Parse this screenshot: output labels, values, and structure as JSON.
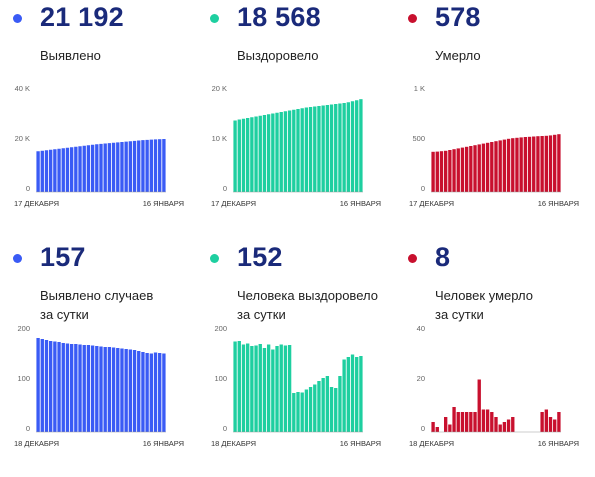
{
  "panels": [
    {
      "number": "21 192",
      "label_lines": [
        "Выявлено"
      ],
      "color": "#3a5bf5",
      "chart_data": {
        "type": "bar",
        "xlabels": [
          "17 ДЕКАБРЯ",
          "16 ЯНВАРЯ"
        ],
        "yticks": [
          {
            "v": 0,
            "t": "0"
          },
          {
            "v": 20000,
            "t": "20 K"
          },
          {
            "v": 40000,
            "t": "40 K"
          }
        ],
        "ylim": [
          0,
          40000
        ],
        "values": [
          16300,
          16500,
          16700,
          16900,
          17100,
          17300,
          17500,
          17700,
          17900,
          18100,
          18300,
          18500,
          18700,
          18900,
          19100,
          19250,
          19400,
          19550,
          19700,
          19850,
          20000,
          20150,
          20300,
          20450,
          20600,
          20750,
          20850,
          20950,
          21050,
          21120,
          21192
        ]
      }
    },
    {
      "number": "18 568",
      "label_lines": [
        "Выздоровело"
      ],
      "color": "#1ecfa0",
      "chart_data": {
        "type": "bar",
        "xlabels": [
          "17 ДЕКАБРЯ",
          "16 ЯНВАРЯ"
        ],
        "yticks": [
          {
            "v": 0,
            "t": "0"
          },
          {
            "v": 10000,
            "t": "10 K"
          },
          {
            "v": 20000,
            "t": "20 K"
          }
        ],
        "ylim": [
          0,
          20000
        ],
        "values": [
          14300,
          14500,
          14650,
          14800,
          14950,
          15100,
          15250,
          15400,
          15550,
          15700,
          15850,
          16000,
          16150,
          16300,
          16450,
          16600,
          16750,
          16900,
          17000,
          17100,
          17200,
          17300,
          17400,
          17500,
          17600,
          17700,
          17800,
          17950,
          18150,
          18350,
          18568
        ]
      }
    },
    {
      "number": "578",
      "label_lines": [
        "Умерло"
      ],
      "color": "#c8102e",
      "chart_data": {
        "type": "bar",
        "xlabels": [
          "17 ДЕКАБРЯ",
          "16 ЯНВАРЯ"
        ],
        "yticks": [
          {
            "v": 0,
            "t": "0"
          },
          {
            "v": 500,
            "t": "500"
          },
          {
            "v": 1000,
            "t": "1 K"
          }
        ],
        "ylim": [
          0,
          1000
        ],
        "values": [
          402,
          404,
          408,
          412,
          420,
          428,
          436,
          444,
          452,
          460,
          468,
          476,
          484,
          492,
          500,
          508,
          516,
          524,
          532,
          538,
          542,
          546,
          550,
          552,
          555,
          558,
          560,
          562,
          566,
          572,
          578
        ]
      }
    },
    {
      "number": "157",
      "label_lines": [
        "Выявлено случаев",
        "за сутки"
      ],
      "color": "#3a5bf5",
      "chart_data": {
        "type": "bar",
        "xlabels": [
          "18 ДЕКАБРЯ",
          "16 ЯНВАРЯ"
        ],
        "yticks": [
          {
            "v": 0,
            "t": "0"
          },
          {
            "v": 100,
            "t": "100"
          },
          {
            "v": 200,
            "t": "200"
          }
        ],
        "ylim": [
          0,
          200
        ],
        "values": [
          188,
          186,
          184,
          182,
          181,
          180,
          178,
          177,
          176,
          176,
          175,
          174,
          174,
          173,
          172,
          171,
          170,
          170,
          169,
          168,
          167,
          166,
          165,
          164,
          162,
          160,
          158,
          157,
          159,
          158,
          157
        ]
      }
    },
    {
      "number": "152",
      "label_lines": [
        "Человека выздоровело",
        "за сутки"
      ],
      "color": "#1ecfa0",
      "chart_data": {
        "type": "bar",
        "xlabels": [
          "18 ДЕКАБРЯ",
          "16 ЯНВАРЯ"
        ],
        "yticks": [
          {
            "v": 0,
            "t": "0"
          },
          {
            "v": 100,
            "t": "100"
          },
          {
            "v": 200,
            "t": "200"
          }
        ],
        "ylim": [
          0,
          200
        ],
        "values": [
          181,
          182,
          175,
          177,
          172,
          173,
          176,
          168,
          175,
          165,
          172,
          175,
          173,
          174,
          78,
          80,
          79,
          85,
          90,
          95,
          102,
          108,
          112,
          90,
          88,
          112,
          145,
          150,
          155,
          150,
          152
        ]
      }
    },
    {
      "number": "8",
      "label_lines": [
        "Человек умерло",
        "за сутки"
      ],
      "color": "#c8102e",
      "chart_data": {
        "type": "bar",
        "xlabels": [
          "18 ДЕКАБРЯ",
          "16 ЯНВАРЯ"
        ],
        "yticks": [
          {
            "v": 0,
            "t": "0"
          },
          {
            "v": 20,
            "t": "20"
          },
          {
            "v": 40,
            "t": "40"
          }
        ],
        "ylim": [
          0,
          40
        ],
        "values": [
          4,
          2,
          0,
          6,
          3,
          10,
          8,
          8,
          8,
          8,
          8,
          21,
          9,
          9,
          8,
          6,
          3,
          4,
          5,
          6,
          0,
          0,
          0,
          0,
          0,
          0,
          8,
          9,
          6,
          5,
          8
        ]
      }
    }
  ]
}
